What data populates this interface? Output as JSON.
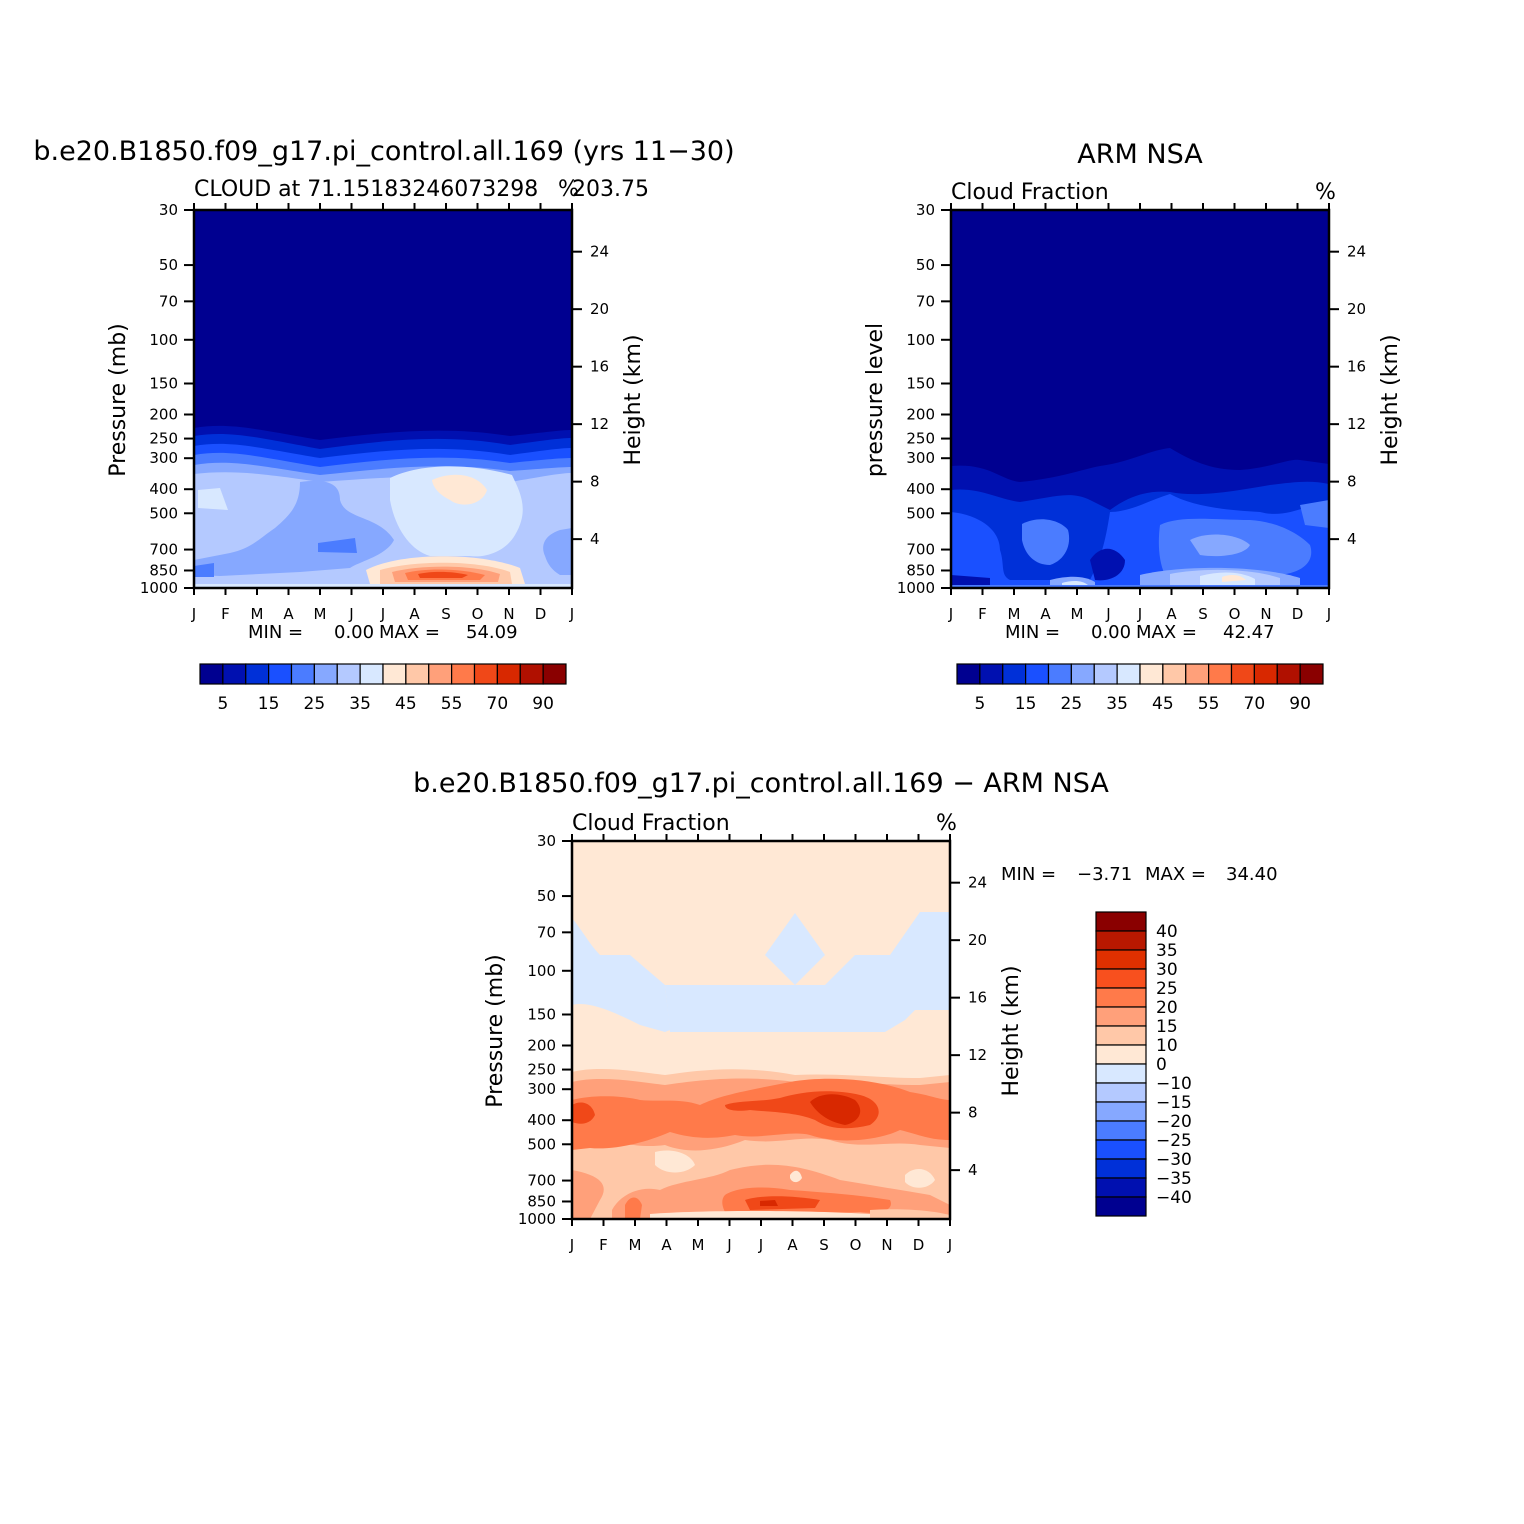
{
  "figure": {
    "background": "#ffffff"
  },
  "chart_data": [
    {
      "type": "heatmap",
      "id": "model",
      "title": "b.e20.B1850.f09_g17.pi_control.all.169 (yrs 11−30)",
      "subtitle_left": "CLOUD at 71.15183246073298",
      "subtitle_right": "203.75",
      "units": "%",
      "ylabel": "Pressure (mb)",
      "ylabel_right": "Height (km)",
      "x_ticks": [
        "J",
        "F",
        "M",
        "A",
        "M",
        "J",
        "J",
        "A",
        "S",
        "O",
        "N",
        "D",
        "J"
      ],
      "pressure_ticks": [
        30,
        50,
        70,
        100,
        150,
        200,
        250,
        300,
        400,
        500,
        700,
        850,
        1000
      ],
      "height_ticks": [
        24,
        20,
        16,
        12,
        8,
        4
      ],
      "stats": {
        "min_label": "MIN =",
        "min": "0.00",
        "max_label": "MAX =",
        "max": "54.09"
      },
      "colorbar": {
        "colors": [
          "#000090",
          "#0010b0",
          "#0030d8",
          "#1a50ff",
          "#4b7cff",
          "#86a8ff",
          "#b4c9ff",
          "#d8e8ff",
          "#ffe8d5",
          "#ffc8a8",
          "#ffa07a",
          "#ff7a4a",
          "#f04818",
          "#d82800",
          "#b01000",
          "#8a0000"
        ],
        "labels": [
          "5",
          "15",
          "25",
          "35",
          "45",
          "55",
          "70",
          "90"
        ]
      },
      "field_summary": "cloud fraction near 0% above 200 mb; 25-40% between 300 and 850 mb with a 40-45% maximum near 350 mb in Aug-Sep; 45-54% maximum near 900 mb in Aug-Oct"
    },
    {
      "type": "heatmap",
      "id": "obs",
      "title": "ARM NSA",
      "subtitle_left": "Cloud Fraction",
      "units": "%",
      "ylabel": "pressure level",
      "ylabel_right": "Height (km)",
      "x_ticks": [
        "J",
        "F",
        "M",
        "A",
        "M",
        "J",
        "J",
        "A",
        "S",
        "O",
        "N",
        "D",
        "J"
      ],
      "pressure_ticks": [
        30,
        50,
        70,
        100,
        150,
        200,
        250,
        300,
        400,
        500,
        700,
        850,
        1000
      ],
      "height_ticks": [
        24,
        20,
        16,
        12,
        8,
        4
      ],
      "stats": {
        "min_label": "MIN =",
        "min": "0.00",
        "max_label": "MAX =",
        "max": "42.47"
      },
      "colorbar": {
        "colors": [
          "#000090",
          "#0010b0",
          "#0030d8",
          "#1a50ff",
          "#4b7cff",
          "#86a8ff",
          "#b4c9ff",
          "#d8e8ff",
          "#ffe8d5",
          "#ffc8a8",
          "#ffa07a",
          "#ff7a4a",
          "#f04818",
          "#d82800",
          "#b01000",
          "#8a0000"
        ],
        "labels": [
          "5",
          "15",
          "25",
          "35",
          "45",
          "55",
          "70",
          "90"
        ]
      },
      "field_summary": "cloud fraction 0-5% above 300 mb; 10-25% between 300 and 900 mb; 40% maximum near the surface in Sep-Oct"
    },
    {
      "type": "heatmap",
      "id": "diff",
      "title": "b.e20.B1850.f09_g17.pi_control.all.169 − ARM NSA",
      "subtitle_left": "Cloud Fraction",
      "units": "%",
      "ylabel": "Pressure (mb)",
      "ylabel_right": "Height (km)",
      "x_ticks": [
        "J",
        "F",
        "M",
        "A",
        "M",
        "J",
        "J",
        "A",
        "S",
        "O",
        "N",
        "D",
        "J"
      ],
      "pressure_ticks": [
        30,
        50,
        70,
        100,
        150,
        200,
        250,
        300,
        400,
        500,
        700,
        850,
        1000
      ],
      "height_ticks": [
        24,
        20,
        16,
        12,
        8,
        4
      ],
      "stats": {
        "min_label": "MIN =",
        "min": "−3.71",
        "max_label": "MAX =",
        "max": "34.40"
      },
      "colorbar": {
        "colors": [
          "#8a0000",
          "#b81800",
          "#e03000",
          "#f8501e",
          "#ff7a4a",
          "#ffa07a",
          "#ffc8a8",
          "#ffe8d5",
          "#d8e8ff",
          "#b4c9ff",
          "#86a8ff",
          "#4b7cff",
          "#1a50ff",
          "#0030d8",
          "#0010b0",
          "#000090"
        ],
        "labels": [
          "40",
          "35",
          "30",
          "25",
          "20",
          "15",
          "10",
          "0",
          "−10",
          "−15",
          "−20",
          "−25",
          "−30",
          "−35",
          "−40"
        ]
      },
      "field_summary": "differences 0-10% above 250 mb with small negative areas near 70-150 mb; 20-34% positive maximum between 300 and 500 mb and near 850 mb"
    }
  ]
}
